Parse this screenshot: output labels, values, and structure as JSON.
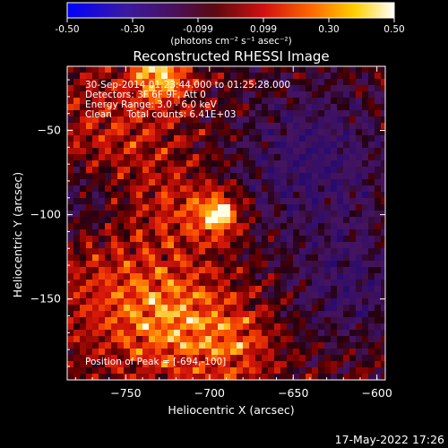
{
  "page": {
    "title": "Reconstructed RHESSI Image",
    "timestamp": "17-May-2022 17:26"
  },
  "colorbar": {
    "ticks": [
      "-0.50",
      "-0.30",
      "-0.099",
      "0.099",
      "0.30",
      "0.50"
    ],
    "unit_label": "(photons cm⁻² s⁻¹ asec⁻²)"
  },
  "annotation": {
    "line1": "30-Sep-2014 01:23:44.000 to 01:25:28.000",
    "line2": "Detectors: 3F 6F 9F, Att 0",
    "line3": "Energy Range: 3.0 - 6.0 keV",
    "line4": "Clean     Total counts: 6.41E+03",
    "peak": "Position of Peak = [-694,-100]"
  },
  "colors": {
    "colorbar_low": "#0000ff",
    "colorbar_mid": "#ff0000",
    "colorbar_high": "#ffffff",
    "background": "#000000"
  },
  "chart_data": {
    "type": "heatmap",
    "title": "Reconstructed RHESSI Image",
    "xlabel": "Heliocentric X (arcsec)",
    "ylabel": "Heliocentric Y (arcsec)",
    "xlim": [
      -785,
      -595
    ],
    "ylim": [
      -198,
      -12
    ],
    "xticks": [
      -750,
      -700,
      -650,
      -600
    ],
    "yticks": [
      -50,
      -100,
      -150
    ],
    "xtick_labels": [
      "−750",
      "−700",
      "−650",
      "−600"
    ],
    "ytick_labels": [
      "−50",
      "−100",
      "−150"
    ],
    "colorbar_range": [
      -0.5,
      0.5
    ],
    "peak": [
      -694,
      -100
    ],
    "colormap": "red-temperature"
  }
}
